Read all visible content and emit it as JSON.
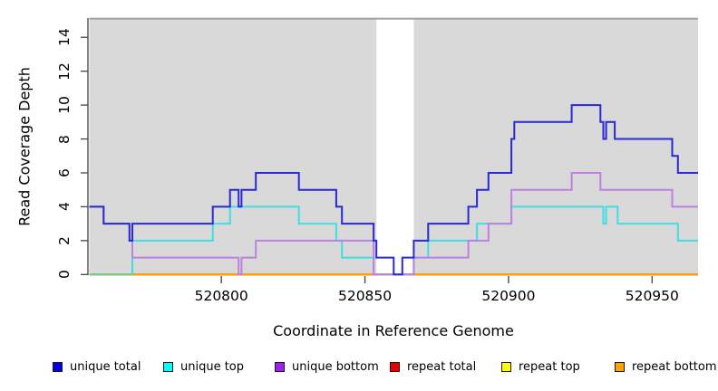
{
  "chart_data": {
    "type": "line",
    "subtype": "step-coverage",
    "title": "",
    "xlabel": "Coordinate in Reference Genome",
    "ylabel": "Read Coverage Depth",
    "xlim": [
      520754,
      520966
    ],
    "ylim": [
      0,
      15
    ],
    "x_ticks": [
      520800,
      520850,
      520900,
      520950
    ],
    "y_ticks": [
      0,
      2,
      4,
      6,
      8,
      10,
      12,
      14
    ],
    "grid": false,
    "plot_bg_color": "#D9D9D9",
    "top_edge_line_color": "#A0A0A0",
    "masked_region": {
      "start": 520854,
      "end": 520867,
      "fill": "#FFFFFF"
    },
    "legend_position": "bottom",
    "legend": [
      {
        "label": "unique total",
        "color": "#0000EE"
      },
      {
        "label": "unique top",
        "color": "#00FFFF"
      },
      {
        "label": "unique bottom",
        "color": "#A020F0"
      },
      {
        "label": "repeat total",
        "color": "#EE0000"
      },
      {
        "label": "repeat top",
        "color": "#FFFF00"
      },
      {
        "label": "repeat bottom",
        "color": "#FFA500"
      }
    ],
    "x_end": 520966,
    "series": [
      {
        "name": "repeat top",
        "line_color": "#FFFF00",
        "steps": [
          [
            520754,
            0
          ]
        ]
      },
      {
        "name": "repeat total",
        "line_color": "#EE0000",
        "steps": [
          [
            520754,
            0
          ]
        ]
      },
      {
        "name": "repeat bottom",
        "line_color": "#FFA500",
        "steps": [
          [
            520754,
            0
          ]
        ]
      },
      {
        "name": "unique top",
        "line_color": "#3FDEE3",
        "steps": [
          [
            520754,
            0
          ],
          [
            520769,
            2
          ],
          [
            520797,
            3
          ],
          [
            520803,
            4
          ],
          [
            520827,
            3
          ],
          [
            520840,
            2
          ],
          [
            520842,
            1
          ],
          [
            520853,
            0
          ],
          [
            520867,
            1
          ],
          [
            520872,
            2
          ],
          [
            520889,
            3
          ],
          [
            520901,
            4
          ],
          [
            520933,
            3
          ],
          [
            520934,
            4
          ],
          [
            520938,
            3
          ],
          [
            520959,
            2
          ]
        ]
      },
      {
        "name": "unique bottom",
        "line_color": "#BD80E3",
        "steps": [
          [
            520754,
            4
          ],
          [
            520759,
            3
          ],
          [
            520768,
            2
          ],
          [
            520769,
            1
          ],
          [
            520806,
            0
          ],
          [
            520807,
            1
          ],
          [
            520812,
            2
          ],
          [
            520853,
            0
          ],
          [
            520867,
            1
          ],
          [
            520886,
            2
          ],
          [
            520893,
            3
          ],
          [
            520901,
            5
          ],
          [
            520922,
            6
          ],
          [
            520932,
            5
          ],
          [
            520957,
            4
          ]
        ]
      },
      {
        "name": "unique total",
        "line_color": "#2929D6",
        "steps": [
          [
            520754,
            4
          ],
          [
            520759,
            3
          ],
          [
            520768,
            2
          ],
          [
            520769,
            3
          ],
          [
            520797,
            4
          ],
          [
            520803,
            5
          ],
          [
            520806,
            4
          ],
          [
            520807,
            5
          ],
          [
            520812,
            6
          ],
          [
            520827,
            5
          ],
          [
            520840,
            4
          ],
          [
            520842,
            3
          ],
          [
            520853,
            2
          ],
          [
            520854,
            1
          ],
          [
            520860,
            0
          ],
          [
            520863,
            1
          ],
          [
            520867,
            2
          ],
          [
            520872,
            3
          ],
          [
            520886,
            4
          ],
          [
            520889,
            5
          ],
          [
            520893,
            6
          ],
          [
            520901,
            8
          ],
          [
            520902,
            9
          ],
          [
            520922,
            10
          ],
          [
            520932,
            9
          ],
          [
            520933,
            8
          ],
          [
            520934,
            9
          ],
          [
            520937,
            8
          ],
          [
            520957,
            7
          ],
          [
            520959,
            6
          ]
        ]
      }
    ],
    "overlap_blend_segments": [
      {
        "start": 520754,
        "end": 520769,
        "value": 0,
        "color": "#7CCB85",
        "note": "unique-top overlapping repeat-bottom at depth 0"
      }
    ]
  }
}
